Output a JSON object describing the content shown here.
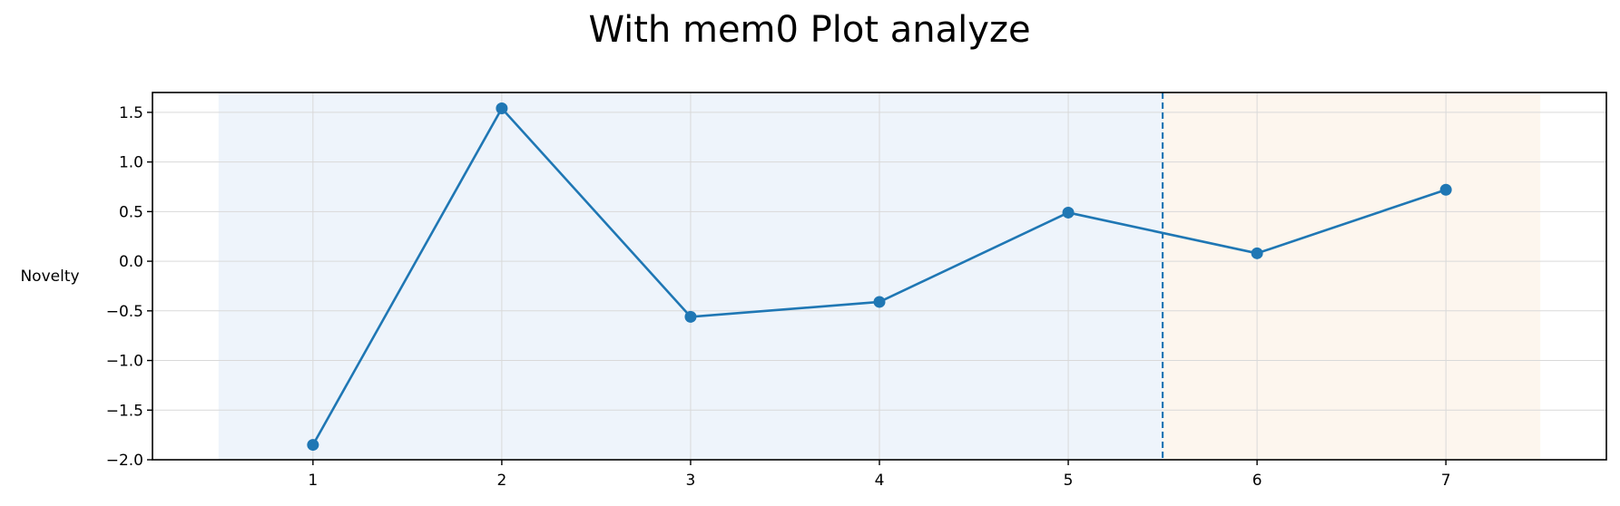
{
  "chart_data": {
    "type": "line",
    "title": "With mem0 Plot analyze",
    "xlabel": "",
    "ylabel": "Novelty",
    "x": [
      1,
      2,
      3,
      4,
      5,
      6,
      7
    ],
    "series": [
      {
        "values": [
          -1.85,
          1.54,
          -0.56,
          -0.41,
          0.49,
          0.08,
          0.72
        ],
        "color": "#1f77b4"
      }
    ],
    "xlim": [
      0.15,
      7.85
    ],
    "ylim": [
      -2.0,
      1.7
    ],
    "xticks": [
      1,
      2,
      3,
      4,
      5,
      6,
      7
    ],
    "yticks": [
      -2.0,
      -1.5,
      -1.0,
      -0.5,
      0.0,
      0.5,
      1.0,
      1.5
    ],
    "ytick_labels": [
      "−2.0",
      "−1.5",
      "−1.0",
      "−0.5",
      "0.0",
      "0.5",
      "1.0",
      "1.5"
    ],
    "grid": true,
    "shaded_regions": [
      {
        "x_start": 0.5,
        "x_end": 5.5,
        "color": "#eef4fb"
      },
      {
        "x_start": 5.5,
        "x_end": 7.5,
        "color": "#fdf6ee"
      }
    ],
    "vline": {
      "x": 5.5,
      "style": "dashed",
      "color": "#1f77b4"
    }
  }
}
